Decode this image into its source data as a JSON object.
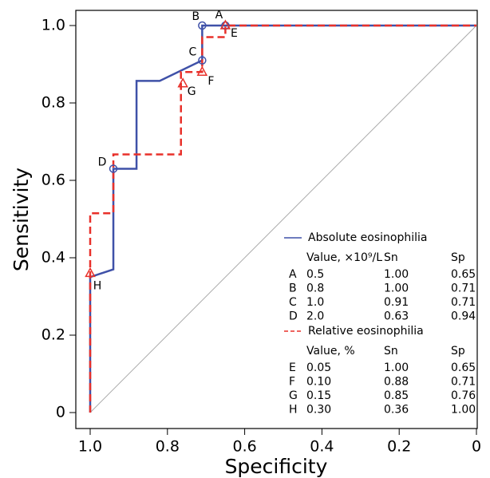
{
  "chart_data": {
    "type": "line",
    "xlabel": "Specificity",
    "ylabel": "Sensitivity",
    "xlim": [
      1,
      0
    ],
    "ylim": [
      0,
      1
    ],
    "xticks": [
      {
        "value": 1,
        "label": "1.0"
      },
      0.8,
      0.6,
      0.4,
      0.2,
      0
    ],
    "yticks": [
      0,
      0.2,
      0.4,
      0.6,
      0.8,
      {
        "value": 1,
        "label": "1.0"
      }
    ],
    "reference_line": true,
    "series": [
      {
        "name": "Absolute eosinophilia",
        "color": "#3f51a8",
        "dash": false,
        "marker": "circle",
        "x": [
          1,
          1,
          0.94,
          0.94,
          0.88,
          0.88,
          0.82,
          0.71,
          0.71,
          0
        ],
        "values": [
          0,
          0.35,
          0.37,
          0.63,
          0.63,
          0.857,
          0.857,
          0.91,
          1,
          1
        ],
        "table_header": [
          "Value, ×10⁹/L",
          "Sn",
          "Sp"
        ],
        "points": [
          {
            "label": "A",
            "value": "0.5",
            "sn": {
              "value": 1,
              "label": "1.00"
            },
            "sp": 0.65
          },
          {
            "label": "B",
            "value": "0.8",
            "sn": {
              "value": 1,
              "label": "1.00"
            },
            "sp": 0.71
          },
          {
            "label": "C",
            "value": "1.0",
            "sn": 0.91,
            "sp": 0.71
          },
          {
            "label": "D",
            "value": "2.0",
            "sn": 0.63,
            "sp": 0.94
          }
        ]
      },
      {
        "name": "Relative eosinophilia",
        "color": "#e8302a",
        "dash": true,
        "marker": "triangle",
        "x": [
          1,
          1,
          0.94,
          0.94,
          0.765,
          0.765,
          0.71,
          0.71,
          0.65,
          0.65,
          0
        ],
        "values": [
          0,
          0.515,
          0.515,
          0.667,
          0.667,
          0.88,
          0.88,
          0.97,
          0.97,
          1,
          1
        ],
        "table_header": [
          "Value, %",
          "Sn",
          "Sp"
        ],
        "points": [
          {
            "label": "E",
            "value": "0.05",
            "sn": {
              "value": 1,
              "label": "1.00"
            },
            "sp": 0.65
          },
          {
            "label": "F",
            "value": "0.10",
            "sn": 0.88,
            "sp": 0.71
          },
          {
            "label": "G",
            "value": "0.15",
            "sn": 0.85,
            "sp": 0.76
          },
          {
            "label": "H",
            "value": "0.30",
            "sn": 0.36,
            "sp": {
              "value": 1,
              "label": "1.00"
            }
          }
        ]
      }
    ]
  }
}
